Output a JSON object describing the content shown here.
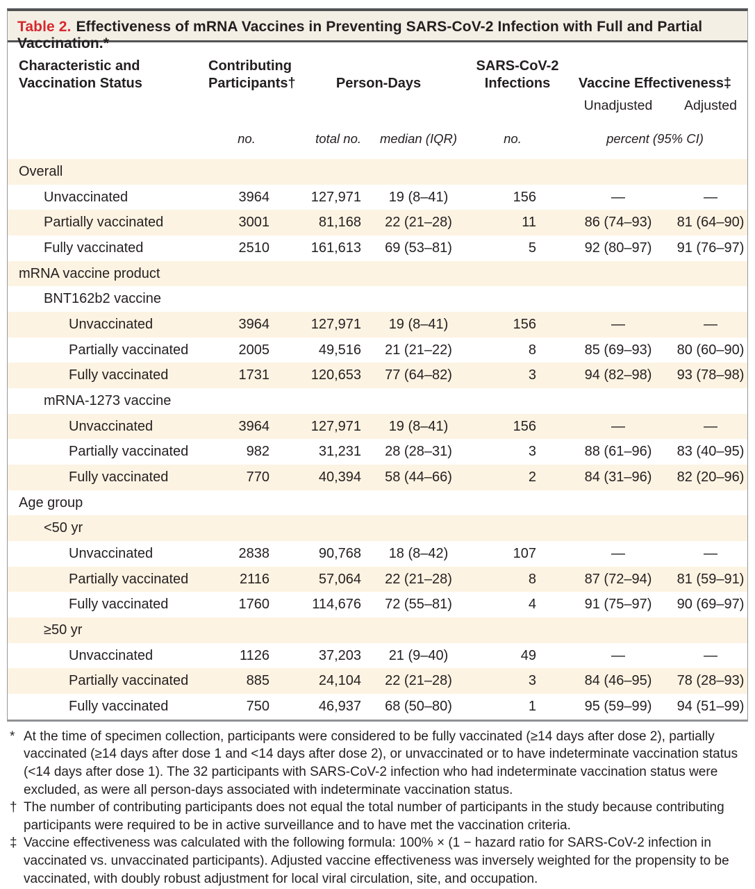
{
  "title": {
    "label": "Table 2.",
    "text": "Effectiveness of mRNA Vaccines in Preventing SARS-CoV-2 Infection with Full and Partial Vaccination.*"
  },
  "header": {
    "col1": "Characteristic and Vaccination Status",
    "participants": "Contributing Participants†",
    "person_days": "Person-Days",
    "infections": "SARS-CoV-2 Infections",
    "effectiveness": "Vaccine Effectiveness‡",
    "unadjusted": "Unadjusted",
    "adjusted": "Adjusted",
    "units": {
      "no1": "no.",
      "total": "total no.",
      "median": "median (IQR)",
      "no2": "no.",
      "percent": "percent (95% CI)"
    }
  },
  "rows": [
    {
      "indent": 0,
      "label": "Overall",
      "cells": [
        "",
        "",
        "",
        "",
        "",
        ""
      ]
    },
    {
      "indent": 1,
      "label": "Unvaccinated",
      "cells": [
        "3964",
        "127,971",
        "19 (8–41)",
        "156",
        "—",
        "—"
      ]
    },
    {
      "indent": 1,
      "label": "Partially vaccinated",
      "cells": [
        "3001",
        "81,168",
        "22 (21–28)",
        "11",
        "86 (74–93)",
        "81 (64–90)"
      ]
    },
    {
      "indent": 1,
      "label": "Fully vaccinated",
      "cells": [
        "2510",
        "161,613",
        "69 (53–81)",
        "5",
        "92 (80–97)",
        "91 (76–97)"
      ]
    },
    {
      "indent": 0,
      "label": "mRNA vaccine product",
      "cells": [
        "",
        "",
        "",
        "",
        "",
        ""
      ]
    },
    {
      "indent": 1,
      "label": "BNT162b2 vaccine",
      "cells": [
        "",
        "",
        "",
        "",
        "",
        ""
      ]
    },
    {
      "indent": 2,
      "label": "Unvaccinated",
      "cells": [
        "3964",
        "127,971",
        "19 (8–41)",
        "156",
        "—",
        "—"
      ]
    },
    {
      "indent": 2,
      "label": "Partially vaccinated",
      "cells": [
        "2005",
        "49,516",
        "21 (21–22)",
        "8",
        "85 (69–93)",
        "80 (60–90)"
      ]
    },
    {
      "indent": 2,
      "label": "Fully vaccinated",
      "cells": [
        "1731",
        "120,653",
        "77 (64–82)",
        "3",
        "94 (82–98)",
        "93 (78–98)"
      ]
    },
    {
      "indent": 1,
      "label": "mRNA-1273 vaccine",
      "cells": [
        "",
        "",
        "",
        "",
        "",
        ""
      ]
    },
    {
      "indent": 2,
      "label": "Unvaccinated",
      "cells": [
        "3964",
        "127,971",
        "19 (8–41)",
        "156",
        "—",
        "—"
      ]
    },
    {
      "indent": 2,
      "label": "Partially vaccinated",
      "cells": [
        "982",
        "31,231",
        "28 (28–31)",
        "3",
        "88 (61–96)",
        "83 (40–95)"
      ]
    },
    {
      "indent": 2,
      "label": "Fully vaccinated",
      "cells": [
        "770",
        "40,394",
        "58 (44–66)",
        "2",
        "84 (31–96)",
        "82 (20–96)"
      ]
    },
    {
      "indent": 0,
      "label": "Age group",
      "cells": [
        "",
        "",
        "",
        "",
        "",
        ""
      ]
    },
    {
      "indent": 1,
      "label": "<50 yr",
      "cells": [
        "",
        "",
        "",
        "",
        "",
        ""
      ]
    },
    {
      "indent": 2,
      "label": "Unvaccinated",
      "cells": [
        "2838",
        "90,768",
        "18 (8–42)",
        "107",
        "—",
        "—"
      ]
    },
    {
      "indent": 2,
      "label": "Partially vaccinated",
      "cells": [
        "2116",
        "57,064",
        "22 (21–28)",
        "8",
        "87 (72–94)",
        "81 (59–91)"
      ]
    },
    {
      "indent": 2,
      "label": "Fully vaccinated",
      "cells": [
        "1760",
        "114,676",
        "72 (55–81)",
        "4",
        "91 (75–97)",
        "90 (69–97)"
      ]
    },
    {
      "indent": 1,
      "label": "≥50 yr",
      "cells": [
        "",
        "",
        "",
        "",
        "",
        ""
      ]
    },
    {
      "indent": 2,
      "label": "Unvaccinated",
      "cells": [
        "1126",
        "37,203",
        "21 (9–40)",
        "49",
        "—",
        "—"
      ]
    },
    {
      "indent": 2,
      "label": "Partially vaccinated",
      "cells": [
        "885",
        "24,104",
        "22 (21–28)",
        "3",
        "84 (46–95)",
        "78 (28–93)"
      ]
    },
    {
      "indent": 2,
      "label": "Fully vaccinated",
      "cells": [
        "750",
        "46,937",
        "68 (50–80)",
        "1",
        "95 (59–99)",
        "94 (51–99)"
      ]
    }
  ],
  "footnotes": [
    {
      "marker": "*",
      "text": "At the time of specimen collection, participants were considered to be fully vaccinated (≥14 days after dose 2), partially vaccinated (≥14 days after dose 1 and <14 days after dose 2), or unvaccinated or to have indeterminate vaccination status (<14 days after dose 1). The 32 participants with SARS-CoV-2 infection who had indeterminate vaccination status were excluded, as were all person-days associated with indeterminate vaccination status."
    },
    {
      "marker": "†",
      "text": "The number of contributing participants does not equal the total number of participants in the study because contributing participants were required to be in active surveillance and to have met the vaccination criteria."
    },
    {
      "marker": "‡",
      "text": "Vaccine effectiveness was calculated with the following formula: 100% × (1 − hazard ratio for SARS-CoV-2 infection in vaccinated vs. unvaccinated participants). Adjusted vaccine effectiveness was inversely weighted for the propensity to be vaccinated, with doubly robust adjustment for local viral circulation, site, and occupation."
    }
  ],
  "colors": {
    "accent_red": "#d7282f",
    "stripe_cream": "#fdf3e2",
    "title_band_bg": "#f3efe5",
    "rule_dark": "#515254",
    "rule_gray": "#8f9193"
  }
}
